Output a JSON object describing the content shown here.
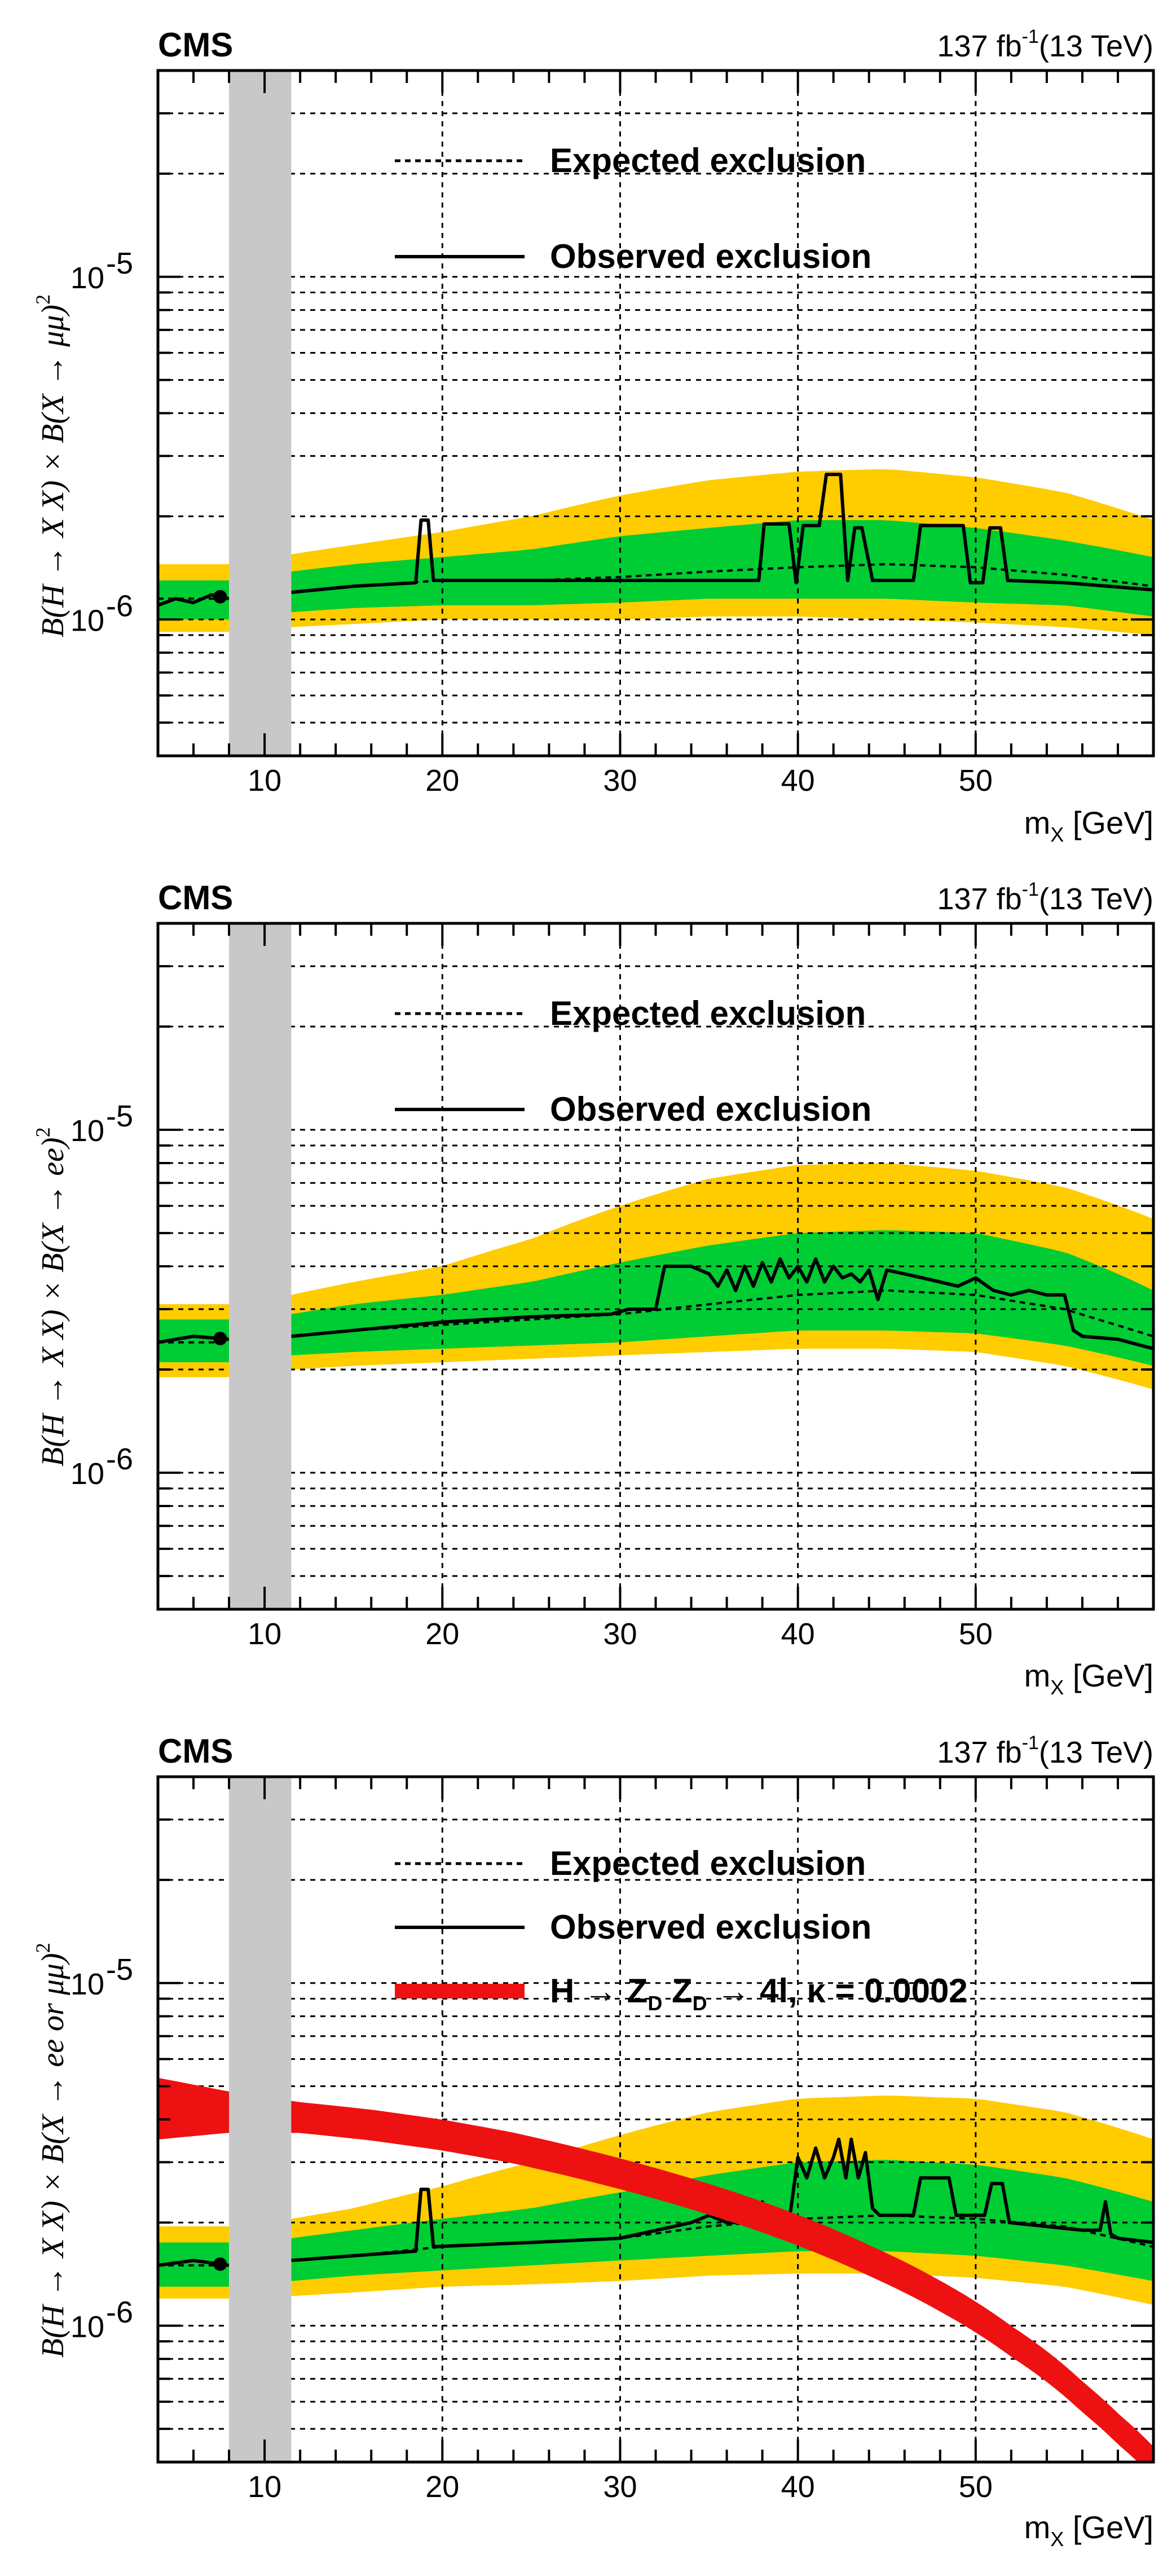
{
  "figure": {
    "colors": {
      "band2sigma": "#ffcc00",
      "band1sigma": "#00cc33",
      "grid": "#000000",
      "gap": "#c8c8c8",
      "signal": "#ee1111"
    }
  },
  "chart_data": [
    {
      "type": "line",
      "title": "CMS",
      "lumi_label": "137 fb",
      "lumi_exp": "-1",
      "lumi_energy": "(13 TeV)",
      "xlabel": "m",
      "xlabel_sub": "X",
      "xlabel_unit": " [GeV]",
      "ylabel": "B(H → X X) × B(X → μμ)",
      "ylabel_exp": "2",
      "xlim": [
        4,
        60
      ],
      "ylim": [
        4e-07,
        4e-05
      ],
      "xticks": [
        10,
        20,
        30,
        40,
        50
      ],
      "xtick_labels": [
        "10",
        "20",
        "30",
        "40",
        "50"
      ],
      "yticks": [
        1e-06,
        1e-05
      ],
      "ytick_base": "10",
      "ytick_exps": [
        "-6",
        "-5"
      ],
      "excluded_region": [
        8,
        11.5
      ],
      "legend": [
        {
          "label": "Expected exclusion",
          "style": "dashed"
        },
        {
          "label": "Observed exclusion",
          "style": "solid"
        }
      ],
      "expected": {
        "x": [
          4,
          6,
          8,
          11.5,
          15,
          20,
          25,
          30,
          35,
          40,
          45,
          50,
          55,
          60
        ],
        "y": [
          1.15e-06,
          1.15e-06,
          1.15e-06,
          1.2e-06,
          1.25e-06,
          1.3e-06,
          1.3e-06,
          1.33e-06,
          1.38e-06,
          1.42e-06,
          1.45e-06,
          1.42e-06,
          1.35e-06,
          1.25e-06
        ]
      },
      "band1": {
        "x": [
          4,
          6,
          8,
          11.5,
          15,
          20,
          25,
          30,
          35,
          40,
          45,
          50,
          55,
          60
        ],
        "low": [
          1e-06,
          1e-06,
          1e-06,
          1.05e-06,
          1.08e-06,
          1.1e-06,
          1.1e-06,
          1.12e-06,
          1.15e-06,
          1.15e-06,
          1.15e-06,
          1.12e-06,
          1.1e-06,
          1.02e-06
        ],
        "high": [
          1.3e-06,
          1.3e-06,
          1.3e-06,
          1.38e-06,
          1.45e-06,
          1.52e-06,
          1.6e-06,
          1.75e-06,
          1.85e-06,
          1.95e-06,
          1.95e-06,
          1.85e-06,
          1.7e-06,
          1.52e-06
        ]
      },
      "band2": {
        "x": [
          4,
          6,
          8,
          11.5,
          15,
          20,
          25,
          30,
          35,
          40,
          45,
          50,
          55,
          60
        ],
        "low": [
          9.2e-07,
          9.2e-07,
          9.2e-07,
          9.5e-07,
          9.7e-07,
          1e-06,
          1e-06,
          1e-06,
          1.02e-06,
          1.02e-06,
          1e-06,
          9.8e-07,
          9.5e-07,
          9e-07
        ],
        "high": [
          1.45e-06,
          1.45e-06,
          1.45e-06,
          1.55e-06,
          1.65e-06,
          1.8e-06,
          2e-06,
          2.3e-06,
          2.55e-06,
          2.7e-06,
          2.75e-06,
          2.6e-06,
          2.35e-06,
          1.95e-06
        ]
      },
      "observed": {
        "x": [
          4,
          5,
          6,
          7,
          8,
          11.5,
          15,
          18.5,
          18.8,
          19.2,
          19.5,
          25,
          30,
          35,
          37.8,
          38.1,
          39.5,
          39.9,
          40.3,
          41.2,
          41.6,
          42.4,
          42.8,
          43.2,
          43.6,
          44.2,
          44.6,
          46.5,
          46.9,
          49.3,
          49.7,
          50.4,
          50.8,
          51.4,
          51.8,
          55,
          60
        ],
        "y": [
          1.1e-06,
          1.15e-06,
          1.12e-06,
          1.18e-06,
          1.15e-06,
          1.2e-06,
          1.25e-06,
          1.28e-06,
          1.95e-06,
          1.95e-06,
          1.3e-06,
          1.3e-06,
          1.3e-06,
          1.3e-06,
          1.3e-06,
          1.9e-06,
          1.9e-06,
          1.28e-06,
          1.88e-06,
          1.88e-06,
          2.65e-06,
          2.65e-06,
          1.3e-06,
          1.85e-06,
          1.85e-06,
          1.3e-06,
          1.3e-06,
          1.3e-06,
          1.88e-06,
          1.88e-06,
          1.28e-06,
          1.28e-06,
          1.85e-06,
          1.85e-06,
          1.3e-06,
          1.28e-06,
          1.22e-06
        ]
      }
    },
    {
      "type": "line",
      "title": "CMS",
      "lumi_label": "137 fb",
      "lumi_exp": "-1",
      "lumi_energy": "(13 TeV)",
      "xlabel": "m",
      "xlabel_sub": "X",
      "xlabel_unit": " [GeV]",
      "ylabel": "B(H → X X) × B(X → ee)",
      "ylabel_exp": "2",
      "xlim": [
        4,
        60
      ],
      "ylim": [
        4e-07,
        4e-05
      ],
      "xticks": [
        10,
        20,
        30,
        40,
        50
      ],
      "xtick_labels": [
        "10",
        "20",
        "30",
        "40",
        "50"
      ],
      "yticks": [
        1e-06,
        1e-05
      ],
      "ytick_base": "10",
      "ytick_exps": [
        "-6",
        "-5"
      ],
      "excluded_region": [
        8,
        11.5
      ],
      "legend": [
        {
          "label": "Expected exclusion",
          "style": "dashed"
        },
        {
          "label": "Observed exclusion",
          "style": "solid"
        }
      ],
      "expected": {
        "x": [
          4,
          6,
          8,
          11.5,
          15,
          20,
          25,
          30,
          35,
          40,
          45,
          50,
          55,
          60
        ],
        "y": [
          2.4e-06,
          2.4e-06,
          2.4e-06,
          2.5e-06,
          2.6e-06,
          2.7e-06,
          2.8e-06,
          2.9e-06,
          3.1e-06,
          3.3e-06,
          3.4e-06,
          3.3e-06,
          3e-06,
          2.5e-06
        ]
      },
      "band1": {
        "x": [
          4,
          6,
          8,
          11.5,
          15,
          20,
          25,
          30,
          35,
          40,
          45,
          50,
          55,
          60
        ],
        "low": [
          2.1e-06,
          2.1e-06,
          2.1e-06,
          2.2e-06,
          2.25e-06,
          2.3e-06,
          2.35e-06,
          2.4e-06,
          2.5e-06,
          2.6e-06,
          2.6e-06,
          2.55e-06,
          2.35e-06,
          2.05e-06
        ],
        "high": [
          2.8e-06,
          2.8e-06,
          2.8e-06,
          2.9e-06,
          3.1e-06,
          3.3e-06,
          3.6e-06,
          4.1e-06,
          4.6e-06,
          5e-06,
          5.1e-06,
          5e-06,
          4.4e-06,
          3.4e-06
        ]
      },
      "band2": {
        "x": [
          4,
          6,
          8,
          11.5,
          15,
          20,
          25,
          30,
          35,
          40,
          45,
          50,
          55,
          60
        ],
        "low": [
          1.9e-06,
          1.9e-06,
          1.9e-06,
          2e-06,
          2.05e-06,
          2.1e-06,
          2.15e-06,
          2.2e-06,
          2.25e-06,
          2.3e-06,
          2.3e-06,
          2.25e-06,
          2.05e-06,
          1.75e-06
        ],
        "high": [
          3.1e-06,
          3.1e-06,
          3.1e-06,
          3.3e-06,
          3.6e-06,
          4e-06,
          4.8e-06,
          6e-06,
          7.2e-06,
          7.9e-06,
          8e-06,
          7.6e-06,
          6.8e-06,
          5.5e-06
        ]
      },
      "observed": {
        "x": [
          4,
          6,
          8,
          11.5,
          15,
          20,
          25,
          29.5,
          30,
          30.5,
          32,
          32.5,
          34,
          35,
          35.5,
          36,
          36.5,
          37,
          37.5,
          38,
          38.5,
          39,
          39.5,
          40,
          40.5,
          41,
          41.5,
          42,
          42.5,
          43,
          43.5,
          44,
          44.5,
          45,
          46,
          47,
          48,
          49,
          50,
          51,
          52,
          53,
          54,
          55,
          55.5,
          56,
          58,
          60
        ],
        "y": [
          2.4e-06,
          2.5e-06,
          2.45e-06,
          2.5e-06,
          2.6e-06,
          2.75e-06,
          2.85e-06,
          2.9e-06,
          2.95e-06,
          3e-06,
          3e-06,
          4e-06,
          4e-06,
          3.8e-06,
          3.5e-06,
          3.9e-06,
          3.4e-06,
          4e-06,
          3.5e-06,
          4.1e-06,
          3.6e-06,
          4.2e-06,
          3.7e-06,
          4e-06,
          3.6e-06,
          4.2e-06,
          3.6e-06,
          4e-06,
          3.7e-06,
          3.8e-06,
          3.6e-06,
          3.9e-06,
          3.2e-06,
          3.9e-06,
          3.8e-06,
          3.7e-06,
          3.6e-06,
          3.5e-06,
          3.7e-06,
          3.4e-06,
          3.3e-06,
          3.4e-06,
          3.3e-06,
          3.3e-06,
          2.6e-06,
          2.5e-06,
          2.45e-06,
          2.3e-06
        ]
      }
    },
    {
      "type": "line",
      "title": "CMS",
      "lumi_label": "137 fb",
      "lumi_exp": "-1",
      "lumi_energy": "(13 TeV)",
      "xlabel": "m",
      "xlabel_sub": "X",
      "xlabel_unit": " [GeV]",
      "ylabel": "B(H → X X) × B(X → ee or μμ)",
      "ylabel_exp": "2",
      "xlim": [
        4,
        60
      ],
      "ylim": [
        4e-07,
        4e-05
      ],
      "xticks": [
        10,
        20,
        30,
        40,
        50
      ],
      "xtick_labels": [
        "10",
        "20",
        "30",
        "40",
        "50"
      ],
      "yticks": [
        1e-06,
        1e-05
      ],
      "ytick_base": "10",
      "ytick_exps": [
        "-6",
        "-5"
      ],
      "excluded_region": [
        8,
        11.5
      ],
      "legend": [
        {
          "label": "Expected exclusion",
          "style": "dashed"
        },
        {
          "label": "Observed exclusion",
          "style": "solid"
        },
        {
          "label": "H → Z_D Z_D → 4l, κ = 0.0002",
          "style": "signal"
        }
      ],
      "signal_legend_parts": {
        "a": "H → Z",
        "sub1": "D",
        "b": " Z",
        "sub2": "D",
        "c": " → 4l, κ = 0.0002"
      },
      "expected": {
        "x": [
          4,
          6,
          8,
          11.5,
          15,
          20,
          25,
          30,
          35,
          40,
          45,
          50,
          55,
          60
        ],
        "y": [
          1.5e-06,
          1.5e-06,
          1.5e-06,
          1.55e-06,
          1.6e-06,
          1.7e-06,
          1.75e-06,
          1.8e-06,
          1.95e-06,
          2.05e-06,
          2.1e-06,
          2.05e-06,
          1.95e-06,
          1.7e-06
        ]
      },
      "band1": {
        "x": [
          4,
          6,
          8,
          11.5,
          15,
          20,
          25,
          30,
          35,
          40,
          45,
          50,
          55,
          60
        ],
        "low": [
          1.3e-06,
          1.3e-06,
          1.3e-06,
          1.35e-06,
          1.4e-06,
          1.45e-06,
          1.5e-06,
          1.55e-06,
          1.6e-06,
          1.65e-06,
          1.65e-06,
          1.6e-06,
          1.5e-06,
          1.35e-06
        ],
        "high": [
          1.75e-06,
          1.75e-06,
          1.75e-06,
          1.8e-06,
          1.9e-06,
          2.05e-06,
          2.2e-06,
          2.45e-06,
          2.75e-06,
          3e-06,
          3.05e-06,
          2.95e-06,
          2.7e-06,
          2.3e-06
        ]
      },
      "band2": {
        "x": [
          4,
          6,
          8,
          11.5,
          15,
          20,
          25,
          30,
          35,
          40,
          45,
          50,
          55,
          60
        ],
        "low": [
          1.2e-06,
          1.2e-06,
          1.2e-06,
          1.22e-06,
          1.25e-06,
          1.3e-06,
          1.32e-06,
          1.35e-06,
          1.4e-06,
          1.42e-06,
          1.42e-06,
          1.38e-06,
          1.3e-06,
          1.15e-06
        ],
        "high": [
          1.95e-06,
          1.95e-06,
          1.95e-06,
          2.05e-06,
          2.2e-06,
          2.55e-06,
          3e-06,
          3.6e-06,
          4.2e-06,
          4.6e-06,
          4.7e-06,
          4.6e-06,
          4.2e-06,
          3.5e-06
        ]
      },
      "observed": {
        "x": [
          4,
          6,
          8,
          11.5,
          15,
          18.5,
          18.8,
          19.2,
          19.5,
          25,
          30,
          34,
          35,
          36,
          37.5,
          38,
          38.5,
          39.5,
          40,
          40.5,
          41,
          41.5,
          42,
          42.3,
          42.7,
          43,
          43.4,
          43.8,
          44.2,
          44.6,
          46.5,
          46.9,
          48.5,
          48.9,
          50.5,
          50.9,
          51.5,
          51.9,
          56,
          57,
          57.3,
          57.6,
          58,
          60
        ],
        "y": [
          1.5e-06,
          1.55e-06,
          1.5e-06,
          1.55e-06,
          1.6e-06,
          1.65e-06,
          2.5e-06,
          2.5e-06,
          1.7e-06,
          1.75e-06,
          1.8e-06,
          2e-06,
          2.1e-06,
          2e-06,
          2e-06,
          2.3e-06,
          2e-06,
          2e-06,
          3.1e-06,
          2.7e-06,
          3.3e-06,
          2.7e-06,
          3.1e-06,
          3.5e-06,
          2.7e-06,
          3.5e-06,
          2.7e-06,
          3.2e-06,
          2.2e-06,
          2.1e-06,
          2.1e-06,
          2.7e-06,
          2.7e-06,
          2.1e-06,
          2.1e-06,
          2.6e-06,
          2.6e-06,
          2e-06,
          1.9e-06,
          1.9e-06,
          2.3e-06,
          1.85e-06,
          1.8e-06,
          1.75e-06
        ]
      },
      "signal": {
        "x": [
          4,
          8,
          12,
          16,
          20,
          24,
          28,
          32,
          36,
          40,
          44,
          48,
          52,
          56,
          58,
          60
        ],
        "y": [
          4.3e-06,
          4.2e-06,
          4.05e-06,
          3.85e-06,
          3.6e-06,
          3.3e-06,
          2.95e-06,
          2.6e-06,
          2.25e-06,
          1.9e-06,
          1.55e-06,
          1.22e-06,
          9e-07,
          6.2e-07,
          5e-07,
          4e-07
        ],
        "halfwidth_dex": [
          0.09,
          0.06,
          0.045,
          0.045,
          0.045,
          0.045,
          0.045,
          0.045,
          0.045,
          0.045,
          0.045,
          0.045,
          0.045,
          0.045,
          0.045,
          0.045
        ]
      }
    }
  ]
}
